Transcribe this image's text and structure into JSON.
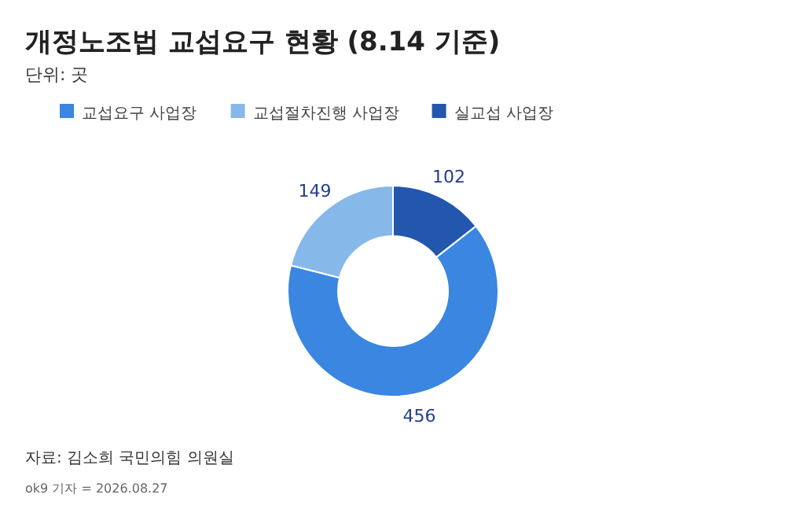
{
  "chart_data": {
    "type": "donut",
    "title": "개정노조법 교섭요구 현황 (8.14 기준)",
    "subtitle": "단위: 곳",
    "categories": [
      "교섭요구 사업장",
      "교섭절차진행 사업장",
      "실교섭 사업장"
    ],
    "values": [
      456,
      149,
      102
    ],
    "colors": [
      "#3a86e0",
      "#86b8ea",
      "#2356ad"
    ],
    "data_labels": true,
    "legend": "top",
    "annotations": [
      "자료: 김소희 국민의힘 의원실",
      "ok9 기자 = 2026.08.27"
    ]
  }
}
